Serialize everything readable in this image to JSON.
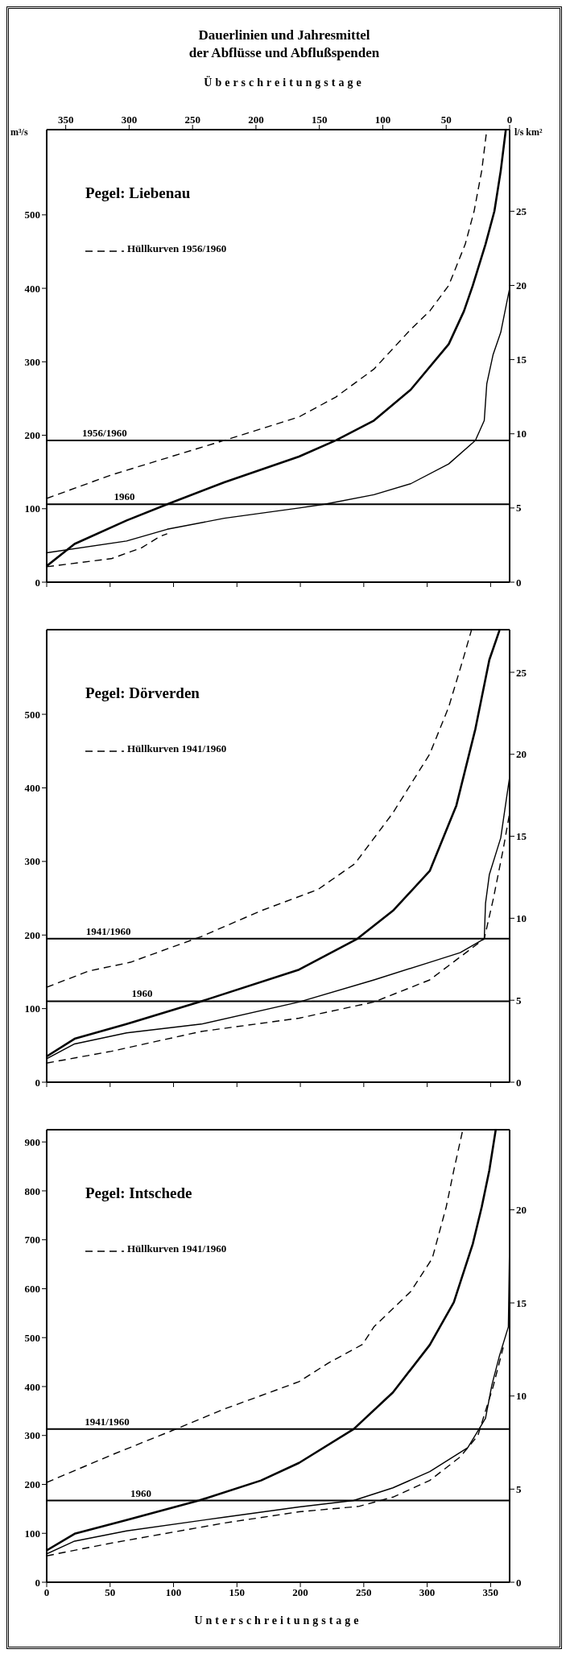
{
  "chart_data": [
    {
      "type": "line",
      "title": "Dauerlinien und Jahresmittel\nder Abflüsse und Abflußspenden",
      "subtitle": "Pegel: Liebenau",
      "x2label": "Überschreitungstage",
      "ylabel": "m³/s",
      "y2label": "l/s km²",
      "xlim": [
        0,
        365
      ],
      "xticks": [
        0,
        50,
        100,
        150,
        200,
        250,
        300,
        350
      ],
      "x2lim": [
        365,
        0
      ],
      "x2ticks": [
        350,
        300,
        250,
        200,
        150,
        100,
        50,
        0
      ],
      "ylim": [
        0,
        616
      ],
      "yticks": [
        0,
        100,
        200,
        300,
        400,
        500
      ],
      "y2lim": [
        0,
        30.5
      ],
      "y2ticks": [
        0,
        5,
        10,
        15,
        20,
        25
      ],
      "tick_labels": "y",
      "legend": "top left",
      "grid": false,
      "ref_lines": [
        {
          "axis": "y",
          "value": 193,
          "color": "#000000"
        },
        {
          "axis": "y",
          "value": 106,
          "color": "#000000"
        }
      ],
      "annotations": [
        {
          "text": "1956/1960",
          "x": 28,
          "y": 193
        },
        {
          "text": "1960",
          "x": 53,
          "y": 106
        }
      ],
      "series": [
        {
          "color": "#000000",
          "line_style": "solid",
          "x": [
            0,
            22,
            63,
            95,
            140,
            199,
            228,
            258,
            287,
            317,
            329,
            336,
            346,
            353,
            358,
            362
          ],
          "values": [
            22,
            52,
            84,
            106,
            136,
            171,
            193,
            220,
            262,
            324,
            369,
            404,
            460,
            505,
            560,
            616
          ]
        },
        {
          "color": "#000000",
          "line_style": "solid",
          "x": [
            0,
            63,
            95,
            140,
            199,
            219,
            258,
            287,
            317,
            338,
            345,
            347,
            352,
            358,
            365
          ],
          "values": [
            40,
            56,
            72,
            87,
            101,
            106,
            119,
            134,
            161,
            193,
            220,
            270,
            310,
            340,
            400
          ]
        },
        {
          "name": "Hüllkurven 1956/1960",
          "color": "#000000",
          "line_style": "dashed",
          "x": [
            0,
            51,
            140,
            199,
            228,
            258,
            287,
            302,
            317,
            330,
            337,
            343,
            347
          ],
          "values": [
            114,
            146,
            193,
            225,
            252,
            290,
            344,
            369,
            404,
            460,
            505,
            560,
            616
          ]
        },
        {
          "color": "#000000",
          "line_style": "dashed",
          "x": [
            0,
            51,
            75,
            89,
            95
          ],
          "values": [
            21,
            32,
            47,
            62,
            66
          ]
        }
      ]
    },
    {
      "type": "line",
      "subtitle": "Pegel: Dörverden",
      "xlim": [
        0,
        365
      ],
      "xticks": [
        0,
        50,
        100,
        150,
        200,
        250,
        300,
        350
      ],
      "ylim": [
        0,
        615
      ],
      "yticks": [
        0,
        100,
        200,
        300,
        400,
        500
      ],
      "y2lim": [
        0,
        27.6
      ],
      "y2ticks": [
        0,
        5,
        10,
        15,
        20,
        25
      ],
      "tick_labels": "y",
      "legend": "top left",
      "grid": false,
      "ref_lines": [
        {
          "axis": "y",
          "value": 195,
          "color": "#000000"
        },
        {
          "axis": "y",
          "value": 110,
          "color": "#000000"
        }
      ],
      "annotations": [
        {
          "text": "1941/1960",
          "x": 31,
          "y": 195
        },
        {
          "text": "1960",
          "x": 67,
          "y": 110
        }
      ],
      "series": [
        {
          "color": "#000000",
          "line_style": "solid",
          "x": [
            0,
            22,
            63,
            122,
            199,
            245,
            273,
            302,
            323,
            338,
            349,
            357
          ],
          "values": [
            35,
            59,
            79,
            110,
            153,
            195,
            233,
            287,
            376,
            480,
            574,
            614
          ]
        },
        {
          "color": "#000000",
          "line_style": "solid",
          "x": [
            0,
            22,
            63,
            122,
            199,
            258,
            302,
            326,
            345,
            346,
            349,
            358,
            365
          ],
          "values": [
            32,
            52,
            67,
            79,
            109,
            139,
            163,
            176,
            195,
            243,
            282,
            332,
            415
          ]
        },
        {
          "name": "Hüllkurven 1941/1960",
          "color": "#000000",
          "line_style": "dashed",
          "x": [
            0,
            33,
            66,
            122,
            169,
            214,
            243,
            273,
            302,
            317,
            329,
            335
          ],
          "values": [
            129,
            151,
            163,
            198,
            233,
            262,
            297,
            366,
            446,
            510,
            579,
            615
          ]
        },
        {
          "color": "#000000",
          "line_style": "dashed",
          "x": [
            0,
            51,
            122,
            199,
            258,
            302,
            332,
            345,
            352,
            360,
            365
          ],
          "values": [
            26,
            42,
            69,
            87,
            109,
            139,
            178,
            195,
            248,
            317,
            366
          ]
        }
      ]
    },
    {
      "type": "line",
      "subtitle": "Pegel: Intschede",
      "xlabel": "Unterschreitungstage",
      "xlim": [
        0,
        365
      ],
      "xticks": [
        0,
        50,
        100,
        150,
        200,
        250,
        300,
        350
      ],
      "ylim": [
        0,
        925
      ],
      "yticks": [
        0,
        100,
        200,
        300,
        400,
        500,
        600,
        700,
        800,
        900
      ],
      "y2lim": [
        0,
        24.3
      ],
      "y2ticks": [
        0,
        5,
        10,
        15,
        20
      ],
      "legend": "top left",
      "grid": false,
      "ref_lines": [
        {
          "axis": "y",
          "value": 313,
          "color": "#000000"
        },
        {
          "axis": "y",
          "value": 167,
          "color": "#000000"
        }
      ],
      "annotations": [
        {
          "text": "1941/1960",
          "x": 30,
          "y": 313
        },
        {
          "text": "1960",
          "x": 66,
          "y": 167
        }
      ],
      "series": [
        {
          "color": "#000000",
          "line_style": "solid",
          "x": [
            0,
            22,
            63,
            120,
            169,
            199,
            242,
            273,
            302,
            321,
            336,
            343,
            349,
            354
          ],
          "values": [
            65,
            99,
            127,
            167,
            208,
            244,
            313,
            388,
            485,
            572,
            692,
            767,
            842,
            924
          ]
        },
        {
          "color": "#000000",
          "line_style": "solid",
          "x": [
            0,
            22,
            63,
            140,
            199,
            242,
            273,
            302,
            332,
            346,
            351,
            357,
            364,
            365
          ],
          "values": [
            58,
            84,
            105,
            133,
            154,
            167,
            193,
            226,
            275,
            335,
            403,
            463,
            522,
            700
          ]
        },
        {
          "name": "Hüllkurven 1941/1960",
          "color": "#000000",
          "line_style": "dashed",
          "x": [
            0,
            51,
            98,
            140,
            199,
            222,
            249,
            258,
            287,
            304,
            315,
            321,
            328
          ],
          "values": [
            204,
            260,
            309,
            354,
            410,
            448,
            486,
            522,
            594,
            662,
            767,
            842,
            924
          ]
        },
        {
          "color": "#000000",
          "line_style": "dashed",
          "x": [
            0,
            51,
            140,
            199,
            246,
            273,
            302,
            326,
            340,
            352,
            360
          ],
          "values": [
            54,
            80,
            121,
            144,
            155,
            174,
            208,
            256,
            300,
            400,
            480
          ]
        }
      ]
    }
  ]
}
